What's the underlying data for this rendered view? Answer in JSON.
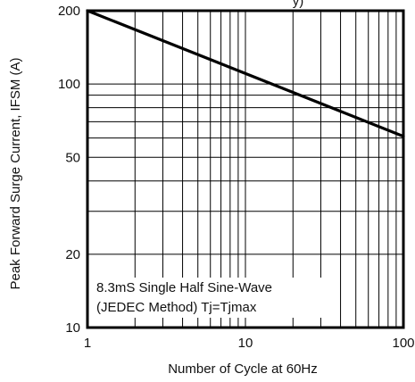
{
  "chart_data": {
    "type": "line",
    "title_fragment": "y)",
    "xlabel": "Number of Cycle at 60Hz",
    "ylabel": "Peak Forward Surge Current, IFSM (A)",
    "x_scale": "log",
    "y_scale": "log",
    "xlim": [
      1,
      100
    ],
    "ylim": [
      10,
      200
    ],
    "x_ticks": [
      1,
      10,
      100
    ],
    "x_tick_labels": [
      "1",
      "10",
      "100"
    ],
    "y_ticks": [
      10,
      20,
      50,
      100,
      200
    ],
    "y_tick_labels": [
      "10",
      "20",
      "50",
      "100",
      "200"
    ],
    "grid": true,
    "series": [
      {
        "x": [
          1,
          100
        ],
        "y": [
          200,
          61
        ]
      }
    ],
    "annotation": [
      "8.3mS Single Half Sine-Wave",
      "(JEDEC Method) Tj=Tjmax"
    ]
  }
}
